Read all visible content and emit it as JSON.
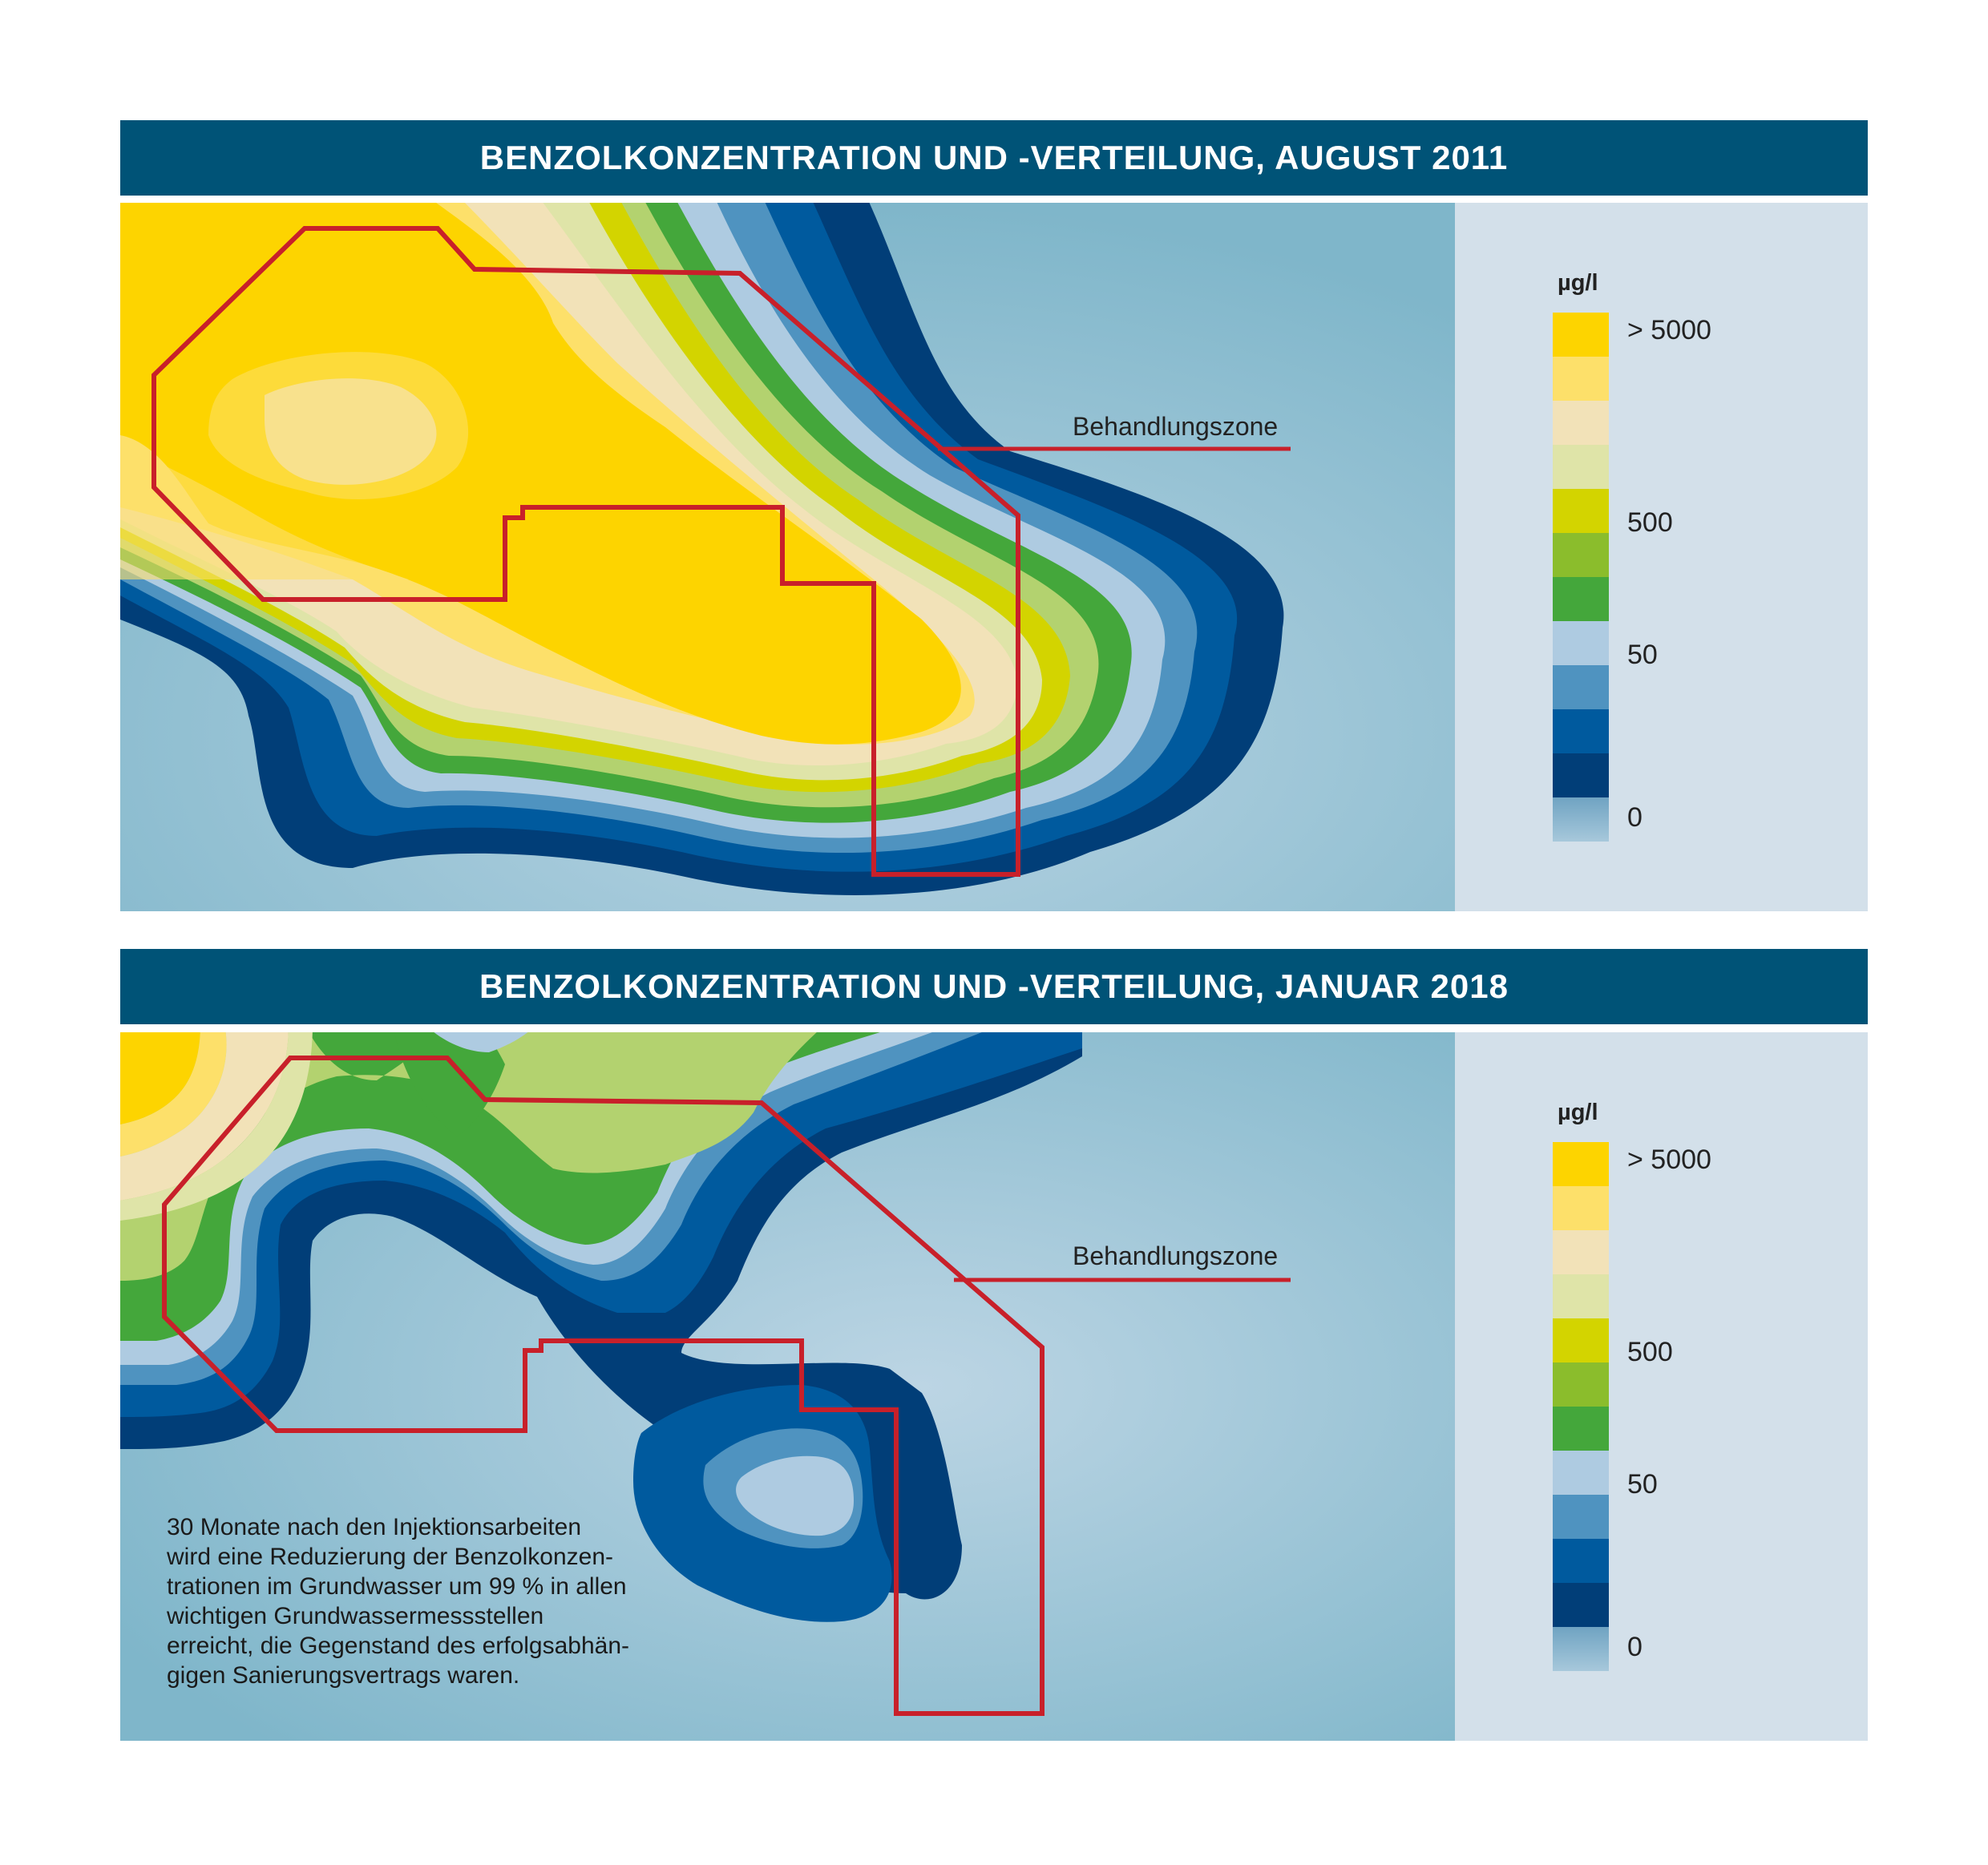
{
  "colors": {
    "background": "#8fbccf",
    "zone_outline": "#c8202a",
    "legend_bands": [
      "#fdd400",
      "#fde06a",
      "#f2e2b8",
      "#dfe4a8",
      "#d3d400",
      "#8bbd2c",
      "#44a73b",
      "#aecbe1",
      "#4f93c0",
      "#005a9e",
      "#013e78",
      "#8ab5cc"
    ]
  },
  "panels": [
    {
      "title": "BENZOLKONZENTRATION UND -VERTEILUNG, AUGUST 2011",
      "zone_label": "Behandlungszone",
      "legend": {
        "unit": "µg/l",
        "labels": [
          "> 5000",
          "500",
          "50",
          "0"
        ]
      }
    },
    {
      "title": "BENZOLKONZENTRATION UND -VERTEILUNG, JANUAR 2018",
      "zone_label": "Behandlungszone",
      "legend": {
        "unit": "µg/l",
        "labels": [
          "> 5000",
          "500",
          "50",
          "0"
        ]
      },
      "note": "30 Monate nach den Injektionsarbeiten\nwird eine Reduzierung der Benzolkonzen-\ntrationen im Grundwasser um 99 % in allen\nwichtigen Grundwassermessstellen\nerreicht, die Gegenstand des erfolgsabhän-\ngigen Sanierungsvertrags waren."
    }
  ]
}
